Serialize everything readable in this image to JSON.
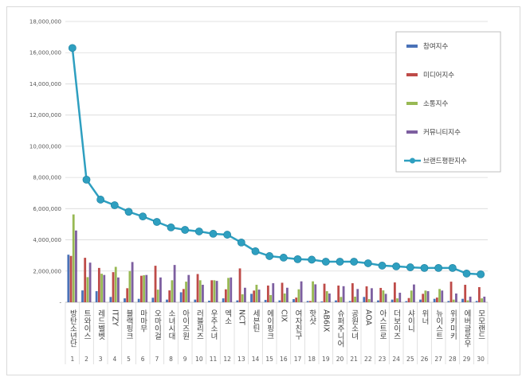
{
  "chart_data": {
    "type": "bar",
    "title": "",
    "xlabel": "",
    "ylabel": "",
    "ylim": [
      0,
      18000000
    ],
    "yticks": [
      "-",
      "2,000,000",
      "4,000,000",
      "6,000,000",
      "8,000,000",
      "10,000,000",
      "12,000,000",
      "14,000,000",
      "16,000,000",
      "18,000,000"
    ],
    "grid": true,
    "legend_position": "top-right",
    "ranks": [
      "1",
      "2",
      "3",
      "4",
      "5",
      "6",
      "7",
      "8",
      "9",
      "10",
      "11",
      "12",
      "13",
      "14",
      "15",
      "16",
      "17",
      "18",
      "19",
      "20",
      "21",
      "22",
      "23",
      "24",
      "25",
      "26",
      "27",
      "28",
      "29",
      "30"
    ],
    "categories": [
      "방탄소년단",
      "트와이스",
      "레드벨벳",
      "ITZY",
      "블랙핑크",
      "마마무",
      "오마이걸",
      "소녀시대",
      "아이즈원",
      "러블리즈",
      "우주소녀",
      "엑소",
      "NCT",
      "세븐틴",
      "에이핑크",
      "CIX",
      "여자친구",
      "핫샷",
      "AB6IX",
      "슈퍼주니어",
      "공원소녀",
      "AOA",
      "아스트로",
      "더보이즈",
      "샤이니",
      "위너",
      "뉴이스트",
      "위키미키",
      "에버글로우",
      "모모랜드"
    ],
    "series": [
      {
        "name": "참여지수",
        "kind": "bar",
        "color": "#4a72b8",
        "values": [
          3050000,
          760000,
          710000,
          340000,
          250000,
          220000,
          290000,
          170000,
          640000,
          170000,
          100000,
          250000,
          120000,
          540000,
          150000,
          120000,
          200000,
          80000,
          50000,
          120000,
          80000,
          340000,
          120000,
          170000,
          70000,
          170000,
          220000,
          80000,
          220000,
          80000
        ]
      },
      {
        "name": "미디어지수",
        "kind": "bar",
        "color": "#be4b48",
        "values": [
          2970000,
          2850000,
          2200000,
          1930000,
          900000,
          1700000,
          2340000,
          760000,
          850000,
          1810000,
          1410000,
          830000,
          2170000,
          750000,
          1070000,
          1250000,
          300000,
          80000,
          1190000,
          1070000,
          1220000,
          1020000,
          920000,
          1270000,
          270000,
          540000,
          300000,
          1320000,
          1120000,
          970000
        ]
      },
      {
        "name": "소통지수",
        "kind": "bar",
        "color": "#98b954",
        "values": [
          5630000,
          1610000,
          1830000,
          2270000,
          2000000,
          1730000,
          810000,
          1410000,
          1320000,
          1410000,
          1410000,
          1560000,
          510000,
          1120000,
          460000,
          560000,
          830000,
          1340000,
          710000,
          340000,
          360000,
          200000,
          760000,
          250000,
          750000,
          750000,
          850000,
          170000,
          120000,
          250000
        ]
      },
      {
        "name": "커뮤니티지수",
        "kind": "bar",
        "color": "#7d5fa0",
        "values": [
          4600000,
          2540000,
          1750000,
          1590000,
          2580000,
          1750000,
          1590000,
          2390000,
          1750000,
          1120000,
          1370000,
          1590000,
          930000,
          810000,
          1220000,
          930000,
          1340000,
          1150000,
          560000,
          1030000,
          850000,
          900000,
          540000,
          610000,
          1140000,
          710000,
          750000,
          560000,
          360000,
          360000
        ]
      },
      {
        "name": "브랜드평판지수",
        "kind": "line",
        "color": "#2e9fc0",
        "values": [
          16300000,
          7860000,
          6580000,
          6220000,
          5800000,
          5500000,
          5150000,
          4800000,
          4640000,
          4540000,
          4390000,
          4330000,
          3830000,
          3270000,
          2960000,
          2860000,
          2760000,
          2730000,
          2600000,
          2600000,
          2600000,
          2500000,
          2350000,
          2300000,
          2240000,
          2200000,
          2200000,
          2200000,
          1840000,
          1790000
        ]
      }
    ]
  }
}
